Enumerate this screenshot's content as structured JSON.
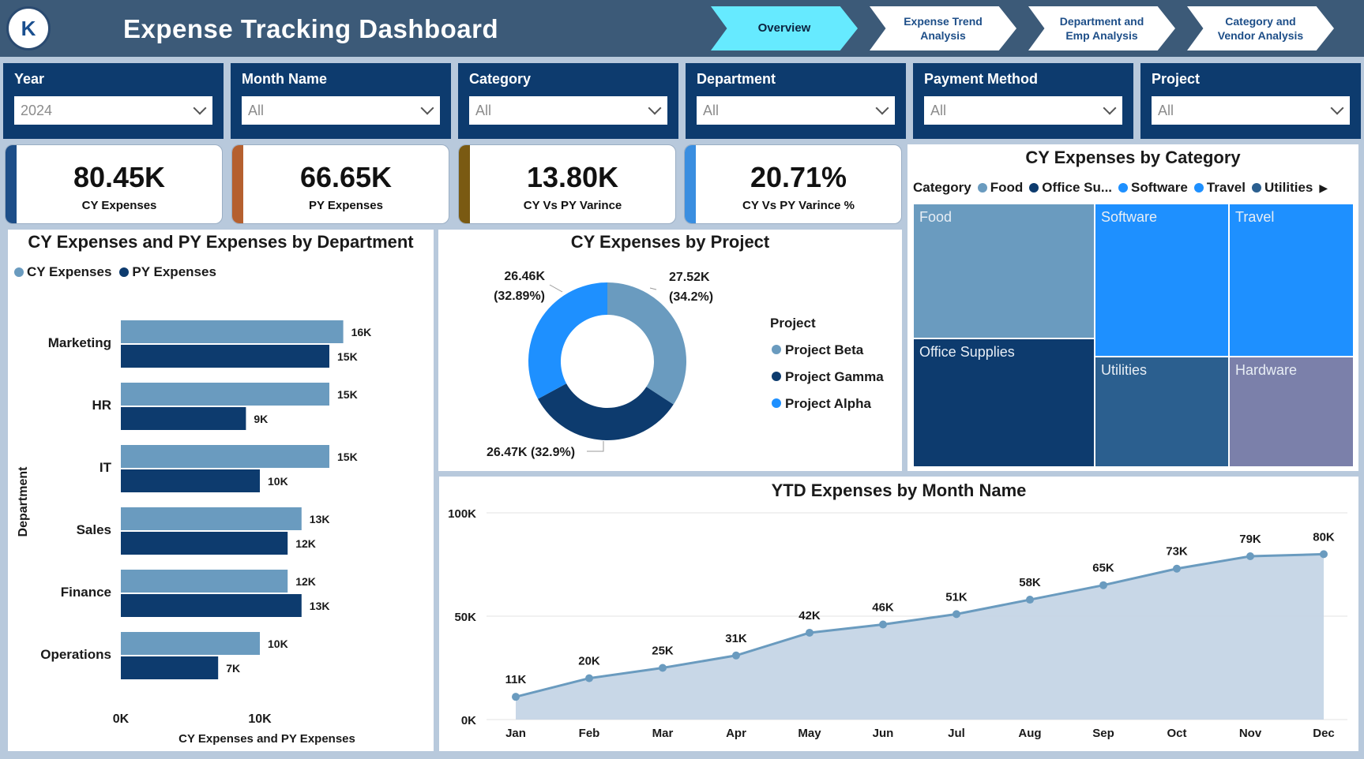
{
  "header": {
    "logo_text": "K",
    "title": "Expense Tracking Dashboard",
    "tabs": [
      {
        "label": "Overview",
        "active": true
      },
      {
        "label": "Expense Trend Analysis",
        "active": false
      },
      {
        "label": "Department and Emp Analysis",
        "active": false
      },
      {
        "label": "Category and Vendor Analysis",
        "active": false
      }
    ]
  },
  "slicers": [
    {
      "label": "Year",
      "value": "2024"
    },
    {
      "label": "Month Name",
      "value": "All"
    },
    {
      "label": "Category",
      "value": "All"
    },
    {
      "label": "Department",
      "value": "All"
    },
    {
      "label": "Payment Method",
      "value": "All"
    },
    {
      "label": "Project",
      "value": "All"
    }
  ],
  "kpis": [
    {
      "value": "80.45K",
      "label": "CY Expenses",
      "stripe": "#1d4e88"
    },
    {
      "value": "66.65K",
      "label": "PY Expenses",
      "stripe": "#b5602f"
    },
    {
      "value": "13.80K",
      "label": "CY Vs PY Varince",
      "stripe": "#7a5a12"
    },
    {
      "value": "20.71%",
      "label": "CY Vs PY Varince %",
      "stripe": "#3a8ee0"
    }
  ],
  "colors": {
    "cy": "#6a9bbf",
    "py": "#0d3b6e",
    "bright": "#1e90ff",
    "area": "#c5d5e6",
    "line": "#6a9bbf"
  },
  "chart_data": [
    {
      "type": "bar",
      "title": "CY Expenses and PY Expenses by Department",
      "xlabel": "CY Expenses and PY Expenses",
      "ylabel": "Department",
      "categories": [
        "Marketing",
        "HR",
        "IT",
        "Sales",
        "Finance",
        "Operations"
      ],
      "series": [
        {
          "name": "CY Expenses",
          "values": [
            16,
            15,
            15,
            13,
            12,
            10
          ],
          "labels": [
            "16K",
            "15K",
            "15K",
            "13K",
            "12K",
            "10K"
          ]
        },
        {
          "name": "PY Expenses",
          "values": [
            15,
            9,
            10,
            12,
            13,
            7
          ],
          "labels": [
            "15K",
            "9K",
            "10K",
            "12K",
            "13K",
            "7K"
          ]
        }
      ],
      "xticks": [
        "0K",
        "10K"
      ],
      "xlim": [
        0,
        20
      ],
      "legend": "top-left"
    },
    {
      "type": "pie",
      "title": "CY Expenses by Project",
      "legend_title": "Project",
      "slices": [
        {
          "name": "Project Beta",
          "value": 27.52,
          "label_value": "27.52K",
          "label_pct": "(34.2%)",
          "color": "#6a9bbf"
        },
        {
          "name": "Project Gamma",
          "value": 26.47,
          "label_value": "26.47K (32.9%)",
          "label_pct": "",
          "color": "#0d3b6e"
        },
        {
          "name": "Project Alpha",
          "value": 26.46,
          "label_value": "26.46K",
          "label_pct": "(32.89%)",
          "color": "#1e90ff"
        }
      ]
    },
    {
      "type": "heatmap",
      "title": "CY Expenses by Category",
      "legend_title": "Category",
      "legend": [
        {
          "name": "Food",
          "color": "#6a9bbf"
        },
        {
          "name": "Office Su...",
          "color": "#0d3b6e"
        },
        {
          "name": "Software",
          "color": "#1e90ff"
        },
        {
          "name": "Travel",
          "color": "#1e90ff"
        },
        {
          "name": "Utilities",
          "color": "#2b5f8f"
        }
      ],
      "cells": [
        {
          "name": "Food",
          "color": "#6a9bbf"
        },
        {
          "name": "Software",
          "color": "#1e90ff"
        },
        {
          "name": "Travel",
          "color": "#1e90ff"
        },
        {
          "name": "Office Supplies",
          "color": "#0d3b6e"
        },
        {
          "name": "Utilities",
          "color": "#2b5f8f"
        },
        {
          "name": "Hardware",
          "color": "#7b80aa"
        }
      ]
    },
    {
      "type": "area",
      "title": "YTD Expenses by Month Name",
      "x": [
        "Jan",
        "Feb",
        "Mar",
        "Apr",
        "May",
        "Jun",
        "Jul",
        "Aug",
        "Sep",
        "Oct",
        "Nov",
        "Dec"
      ],
      "y": [
        11,
        20,
        25,
        31,
        42,
        46,
        51,
        58,
        65,
        73,
        79,
        80
      ],
      "labels": [
        "11K",
        "20K",
        "25K",
        "31K",
        "42K",
        "46K",
        "51K",
        "58K",
        "65K",
        "73K",
        "79K",
        "80K"
      ],
      "yticks": [
        "0K",
        "50K",
        "100K"
      ],
      "ylim": [
        0,
        100
      ],
      "grid": true
    }
  ]
}
